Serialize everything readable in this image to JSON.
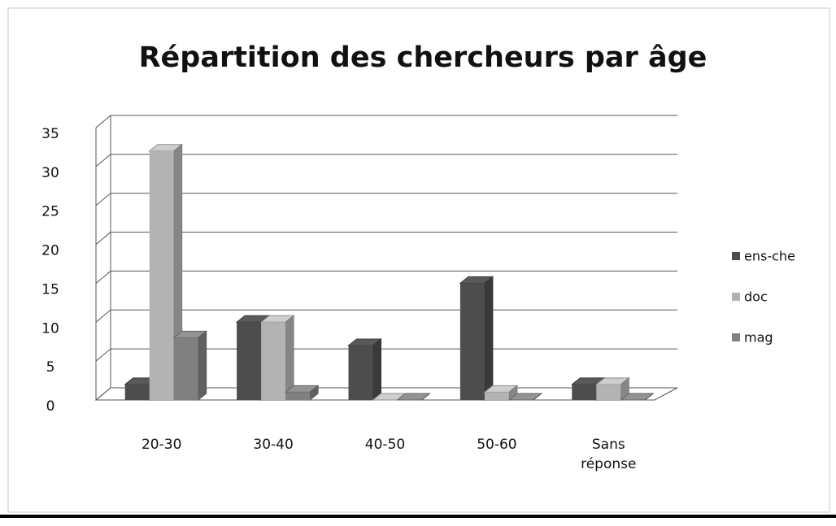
{
  "chart_data": {
    "type": "bar3d",
    "title": "Répartition des chercheurs par âge",
    "categories": [
      "20-30",
      "30-40",
      "40-50",
      "50-60",
      "Sans réponse"
    ],
    "series": [
      {
        "name": "ens-che",
        "color": "#4d4d4d",
        "values": [
          2,
          10,
          7,
          15,
          2
        ]
      },
      {
        "name": "doc",
        "color": "#b3b3b3",
        "values": [
          32,
          10,
          0,
          1,
          2
        ]
      },
      {
        "name": "mag",
        "color": "#808080",
        "values": [
          8,
          1,
          0,
          0,
          0
        ]
      }
    ],
    "ylim": [
      0,
      35
    ],
    "yticks": [
      0,
      5,
      10,
      15,
      20,
      25,
      30,
      35
    ],
    "grid": true,
    "legend": "right"
  }
}
